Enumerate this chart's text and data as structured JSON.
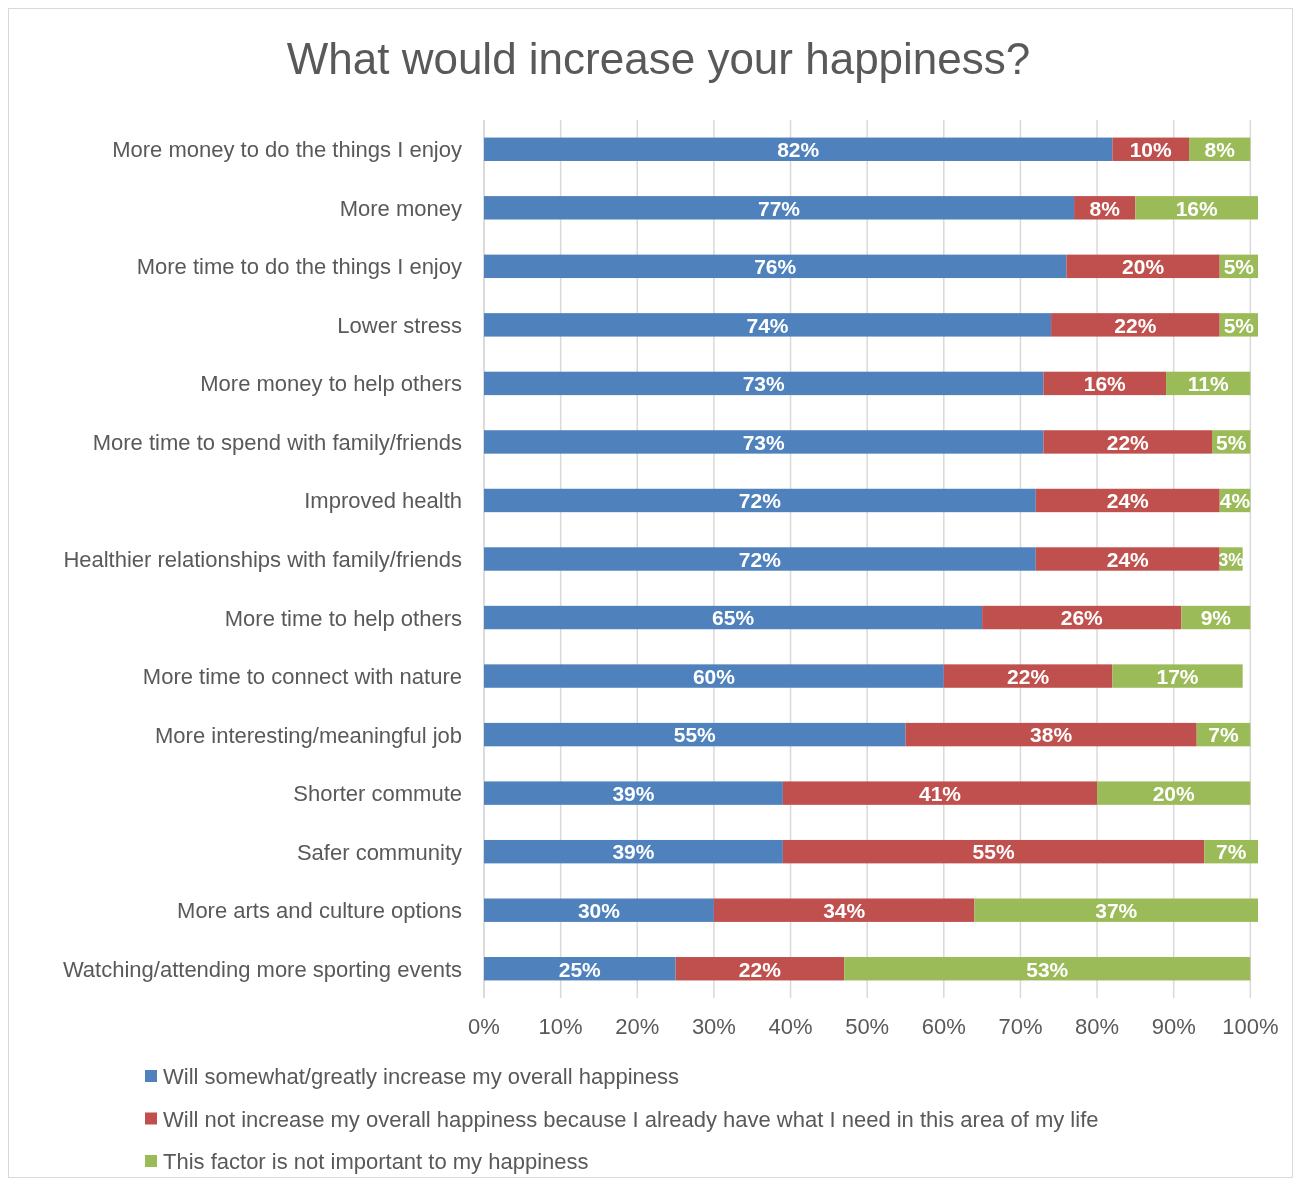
{
  "chart_data": {
    "type": "bar",
    "orientation": "horizontal",
    "stacked": true,
    "title": "What would increase your happiness?",
    "categories": [
      "More money to do the things I enjoy",
      "More money",
      "More time to do the things I enjoy",
      "Lower stress",
      "More money to help others",
      "More time to spend with family/friends",
      "Improved health",
      "Healthier relationships with family/friends",
      "More time to help others",
      "More time to connect with nature",
      "More interesting/meaningful job",
      "Shorter commute",
      "Safer community",
      "More arts and culture options",
      "Watching/attending more sporting events"
    ],
    "series": [
      {
        "name": "Will somewhat/greatly increase my overall happiness",
        "color": "#4f81bd",
        "values": [
          82,
          77,
          76,
          74,
          73,
          73,
          72,
          72,
          65,
          60,
          55,
          39,
          39,
          30,
          25
        ],
        "value_labels": [
          "82%",
          "77%",
          "76%",
          "74%",
          "73%",
          "73%",
          "72%",
          "72%",
          "65%",
          "60%",
          "55%",
          "39%",
          "39%",
          "30%",
          "25%"
        ]
      },
      {
        "name": "Will not increase my overall happiness because I already have what I need in this area of my life",
        "color": "#c0504d",
        "values": [
          10,
          8,
          20,
          22,
          16,
          22,
          24,
          24,
          26,
          22,
          38,
          41,
          55,
          34,
          22
        ],
        "value_labels": [
          "10%",
          "8%",
          "20%",
          "22%",
          "16%",
          "22%",
          "24%",
          "24%",
          "26%",
          "22%",
          "38%",
          "41%",
          "55%",
          "34%",
          "22%"
        ]
      },
      {
        "name": "This factor is not important to my happiness",
        "color": "#9bbb59",
        "values": [
          8,
          16,
          5,
          5,
          11,
          5,
          4,
          3,
          9,
          17,
          7,
          20,
          7,
          37,
          53
        ],
        "value_labels": [
          "8%",
          "16%",
          "5%",
          "5%",
          "11%",
          "5%",
          "4%",
          "3%",
          "9%",
          "17%",
          "7%",
          "20%",
          "7%",
          "37%",
          "53%"
        ]
      }
    ],
    "xlim": [
      0,
      101
    ],
    "xticks": [
      {
        "value": 0,
        "label": "0%"
      },
      {
        "value": 10,
        "label": "10%"
      },
      {
        "value": 20,
        "label": "20%"
      },
      {
        "value": 30,
        "label": "30%"
      },
      {
        "value": 40,
        "label": "40%"
      },
      {
        "value": 50,
        "label": "50%"
      },
      {
        "value": 60,
        "label": "60%"
      },
      {
        "value": 70,
        "label": "70%"
      },
      {
        "value": 80,
        "label": "80%"
      },
      {
        "value": 90,
        "label": "90%"
      },
      {
        "value": 100,
        "label": "100%"
      }
    ],
    "grid": "x",
    "legend": "bottom"
  }
}
